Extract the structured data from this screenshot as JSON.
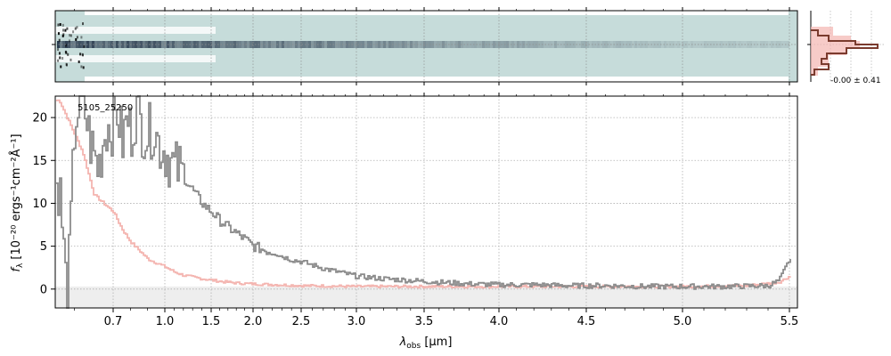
{
  "figure": {
    "object_id": "5105_25250",
    "xlabel_main": "λ",
    "xlabel_sub": "obs",
    "xlabel_unit": " [μm]",
    "ylabel_prefix": "f",
    "ylabel_sub": "λ",
    "ylabel_unit": "[10⁻²⁰ ergs⁻¹cm⁻²Å⁻¹]",
    "profile_label": "-0.00 ± 0.41"
  },
  "chart_data": [
    {
      "type": "line",
      "name": "spectrum-1d",
      "x_tick_labels": [
        "0.7",
        "1.0",
        "1.5",
        "2.0",
        "2.5",
        "3.0",
        "3.5",
        "4.0",
        "4.5",
        "5.0",
        "5.5"
      ],
      "x_ticks_um": [
        0.7,
        1.0,
        1.5,
        2.0,
        2.5,
        3.0,
        3.5,
        4.0,
        4.5,
        5.0,
        5.5
      ],
      "x_scale": "sqrt-like (pixel-linear in resolution)",
      "xlim": [
        0.55,
        5.52
      ],
      "y_tick_labels": [
        "0",
        "5",
        "10",
        "15",
        "20"
      ],
      "y_ticks": [
        0,
        5,
        10,
        15,
        20
      ],
      "ylim": [
        -2.2,
        22.5
      ],
      "grid": true,
      "colors": {
        "flux": "#8c8c8c",
        "error": "#f4b5b0",
        "zero_band": "#eeeeee"
      },
      "series": [
        {
          "role": "flux",
          "x": [
            0.56,
            0.58,
            0.6,
            0.62,
            0.64,
            0.66,
            0.68,
            0.7,
            0.72,
            0.75,
            0.78,
            0.8,
            0.83,
            0.86,
            0.9,
            0.93,
            0.96,
            1.0,
            1.05,
            1.1,
            1.15,
            1.2,
            1.3,
            1.4,
            1.5,
            1.6,
            1.7,
            1.8,
            1.9,
            2.0,
            2.1,
            2.2,
            2.3,
            2.4,
            2.5,
            2.6,
            2.7,
            2.8,
            2.9,
            3.0,
            3.2,
            3.4,
            3.6,
            3.8,
            4.0,
            4.2,
            4.4,
            4.6,
            4.8,
            5.0,
            5.2,
            5.4,
            5.45,
            5.48,
            5.5
          ],
          "y": [
            12,
            -2,
            20,
            22,
            17,
            14,
            19,
            19,
            21,
            17,
            20,
            18,
            21,
            19,
            18,
            19,
            17,
            16,
            15,
            14,
            14,
            13,
            11.5,
            10,
            9,
            8,
            7.2,
            6.5,
            5.8,
            5,
            4.6,
            4.3,
            3.8,
            3.4,
            3.2,
            2.8,
            2.4,
            2.1,
            1.8,
            1.5,
            1.2,
            1.0,
            0.8,
            0.6,
            0.5,
            0.5,
            0.4,
            0.4,
            0.3,
            0.3,
            0.3,
            0.4,
            1.0,
            2.5,
            3.5
          ]
        },
        {
          "role": "error",
          "x": [
            0.56,
            0.58,
            0.6,
            0.62,
            0.65,
            0.7,
            0.75,
            0.8,
            0.9,
            1.0,
            1.1,
            1.2,
            1.4,
            1.6,
            1.8,
            2.0,
            2.5,
            3.0,
            3.5,
            4.0,
            4.5,
            5.0,
            5.3,
            5.45,
            5.5
          ],
          "y": [
            22,
            20,
            18,
            16,
            11,
            9,
            7,
            5.5,
            3.5,
            2.6,
            2,
            1.6,
            1.2,
            0.9,
            0.7,
            0.6,
            0.4,
            0.3,
            0.3,
            0.3,
            0.3,
            0.3,
            0.4,
            0.8,
            1.5
          ]
        }
      ]
    },
    {
      "type": "heatmap",
      "name": "spectrum-2d",
      "colors": {
        "background": "#c6dcda",
        "trace": "#1a2a40",
        "gap": "#ffffff"
      }
    },
    {
      "type": "line",
      "name": "spatial-profile",
      "colors": {
        "profile": "#7a3b2e",
        "error_fill": "#f4b5b0"
      }
    }
  ]
}
